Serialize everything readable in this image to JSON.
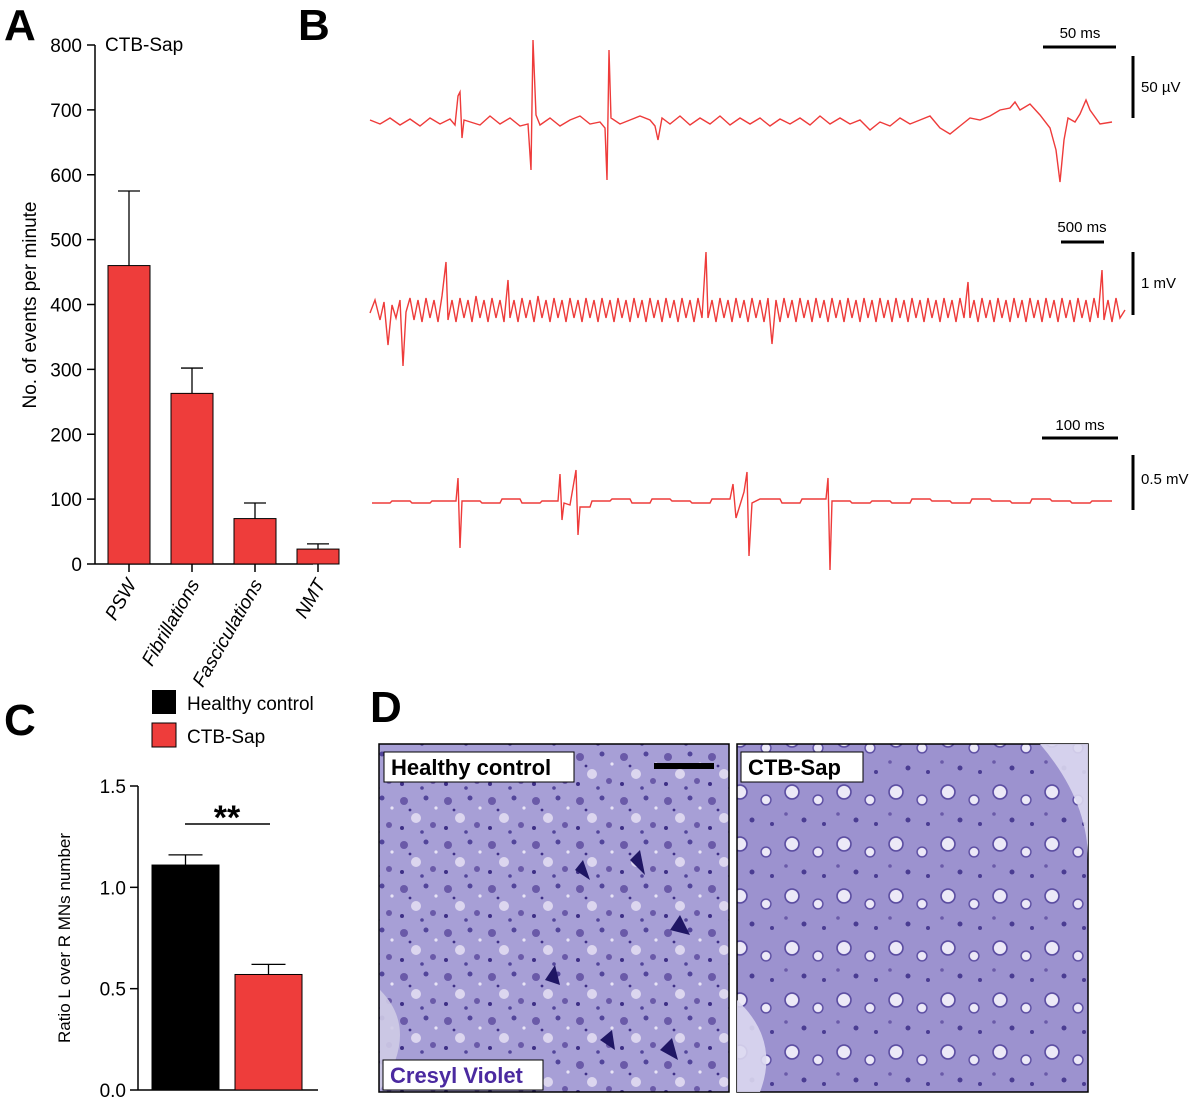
{
  "colors": {
    "ctb": "#ee3d3b",
    "control": "#000000",
    "trace": "#ee3b3a",
    "stain": "#8f84c8",
    "stain_text": "#4b2aa0"
  },
  "panels": {
    "a": "A",
    "b": "B",
    "c": "C",
    "d": "D"
  },
  "chart_data": [
    {
      "type": "bar",
      "panel": "A",
      "title": "CTB-Sap",
      "ylabel": "No. of events per minute",
      "ylim": [
        0,
        800
      ],
      "yticks": [
        "0",
        "100",
        "200",
        "300",
        "400",
        "500",
        "600",
        "700",
        "800"
      ],
      "categories": [
        "PSW",
        "Fibrillations",
        "Fasciculations",
        "NMT"
      ],
      "values": [
        460,
        263,
        70,
        23
      ],
      "errors": [
        115,
        39,
        24,
        8
      ]
    },
    {
      "type": "line",
      "panel": "B",
      "traces": [
        {
          "time_scale": "50 ms",
          "amplitude_scale": "50 µV"
        },
        {
          "time_scale": "500 ms",
          "amplitude_scale": "1 mV"
        },
        {
          "time_scale": "100 ms",
          "amplitude_scale": "0.5 mV"
        }
      ]
    },
    {
      "type": "bar",
      "panel": "C",
      "ylabel": "Ratio L over R MNs number",
      "ylim": [
        0,
        1.5
      ],
      "yticks": [
        "0.0",
        "0.5",
        "1.0",
        "1.5"
      ],
      "categories": [
        "Healthy control",
        "CTB-Sap"
      ],
      "values": [
        1.11,
        0.57
      ],
      "errors": [
        0.05,
        0.05
      ],
      "significance": "**",
      "legend": [
        "Healthy control",
        "CTB-Sap"
      ]
    }
  ],
  "micrographs": {
    "left_label": "Healthy control",
    "right_label": "CTB-Sap",
    "stain_label": "Cresyl Violet"
  }
}
